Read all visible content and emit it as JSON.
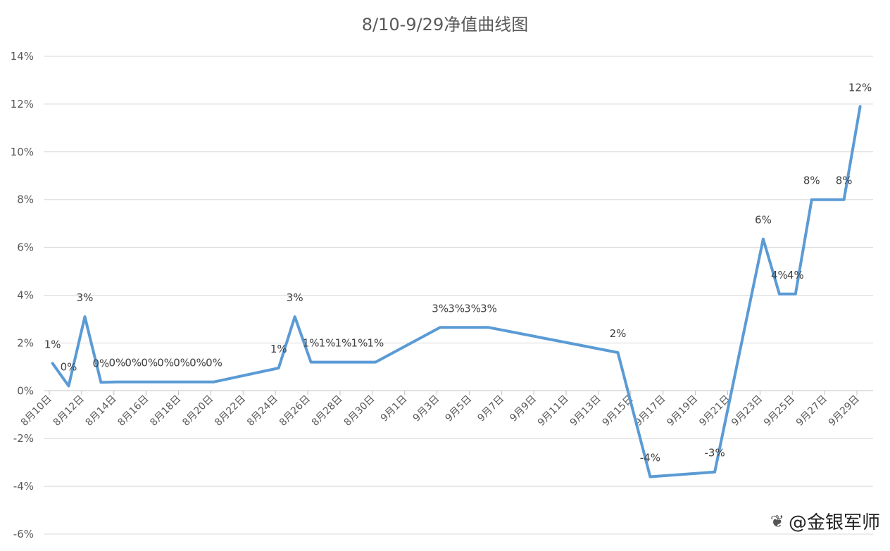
{
  "watermark": {
    "icon": "weibo-icon",
    "text": "@金银军师"
  },
  "chart_data": {
    "type": "line",
    "title": "8/10-9/29净值曲线图",
    "xlabel": "",
    "ylabel": "",
    "ylim": [
      -6,
      14
    ],
    "yticks": [
      -6,
      -4,
      -2,
      0,
      2,
      4,
      6,
      8,
      10,
      12,
      14
    ],
    "ytick_labels": [
      "-6%",
      "-4%",
      "-2%",
      "0%",
      "2%",
      "4%",
      "6%",
      "8%",
      "10%",
      "12%",
      "14%"
    ],
    "xlim_days": [
      0,
      50
    ],
    "xticks": [
      {
        "day": 0,
        "label": "8月10日"
      },
      {
        "day": 2,
        "label": "8月12日"
      },
      {
        "day": 4,
        "label": "8月14日"
      },
      {
        "day": 6,
        "label": "8月16日"
      },
      {
        "day": 8,
        "label": "8月18日"
      },
      {
        "day": 10,
        "label": "8月20日"
      },
      {
        "day": 12,
        "label": "8月22日"
      },
      {
        "day": 14,
        "label": "8月24日"
      },
      {
        "day": 16,
        "label": "8月26日"
      },
      {
        "day": 18,
        "label": "8月28日"
      },
      {
        "day": 20,
        "label": "8月30日"
      },
      {
        "day": 22,
        "label": "9月1日"
      },
      {
        "day": 24,
        "label": "9月3日"
      },
      {
        "day": 26,
        "label": "9月5日"
      },
      {
        "day": 28,
        "label": "9月7日"
      },
      {
        "day": 30,
        "label": "9月9日"
      },
      {
        "day": 32,
        "label": "9月11日"
      },
      {
        "day": 34,
        "label": "9月13日"
      },
      {
        "day": 36,
        "label": "9月15日"
      },
      {
        "day": 38,
        "label": "9月17日"
      },
      {
        "day": 40,
        "label": "9月19日"
      },
      {
        "day": 42,
        "label": "9月21日"
      },
      {
        "day": 44,
        "label": "9月23日"
      },
      {
        "day": 46,
        "label": "9月25日"
      },
      {
        "day": 48,
        "label": "9月27日"
      },
      {
        "day": 50,
        "label": "9月29日"
      }
    ],
    "series": [
      {
        "color": "#5b9bd5",
        "points": [
          {
            "day": 0.2,
            "value": 1.15,
            "label": "1%"
          },
          {
            "day": 1.2,
            "value": 0.2,
            "label": "0%"
          },
          {
            "day": 2.2,
            "value": 3.1,
            "label": "3%"
          },
          {
            "day": 3.2,
            "value": 0.35,
            "label": "0%"
          },
          {
            "day": 4.2,
            "value": 0.37,
            "label": "0%"
          },
          {
            "day": 5.2,
            "value": 0.37,
            "label": "0%"
          },
          {
            "day": 6.2,
            "value": 0.37,
            "label": "0%"
          },
          {
            "day": 7.2,
            "value": 0.37,
            "label": "0%"
          },
          {
            "day": 8.2,
            "value": 0.37,
            "label": "0%"
          },
          {
            "day": 9.2,
            "value": 0.37,
            "label": "0%"
          },
          {
            "day": 10.2,
            "value": 0.37,
            "label": "0%"
          },
          {
            "day": 14.2,
            "value": 0.95,
            "label": "1%"
          },
          {
            "day": 15.2,
            "value": 3.1,
            "label": "3%"
          },
          {
            "day": 16.2,
            "value": 1.2,
            "label": "1%"
          },
          {
            "day": 17.2,
            "value": 1.2,
            "label": "1%"
          },
          {
            "day": 18.2,
            "value": 1.2,
            "label": "1%"
          },
          {
            "day": 19.2,
            "value": 1.2,
            "label": "1%"
          },
          {
            "day": 20.2,
            "value": 1.2,
            "label": "1%"
          },
          {
            "day": 24.2,
            "value": 2.65,
            "label": "3%"
          },
          {
            "day": 25.2,
            "value": 2.65,
            "label": "3%"
          },
          {
            "day": 26.2,
            "value": 2.65,
            "label": "3%"
          },
          {
            "day": 27.2,
            "value": 2.65,
            "label": "3%"
          },
          {
            "day": 35.2,
            "value": 1.6,
            "label": "2%"
          },
          {
            "day": 37.2,
            "value": -3.6,
            "label": "-4%"
          },
          {
            "day": 41.2,
            "value": -3.4,
            "label": "-3%"
          },
          {
            "day": 44.2,
            "value": 6.35,
            "label": "6%"
          },
          {
            "day": 45.2,
            "value": 4.05,
            "label": "4%"
          },
          {
            "day": 46.2,
            "value": 4.05,
            "label": "4%"
          },
          {
            "day": 47.2,
            "value": 8.0,
            "label": "8%"
          },
          {
            "day": 49.2,
            "value": 8.0,
            "label": "8%"
          },
          {
            "day": 50.2,
            "value": 11.9,
            "label": "12%"
          }
        ]
      }
    ]
  }
}
